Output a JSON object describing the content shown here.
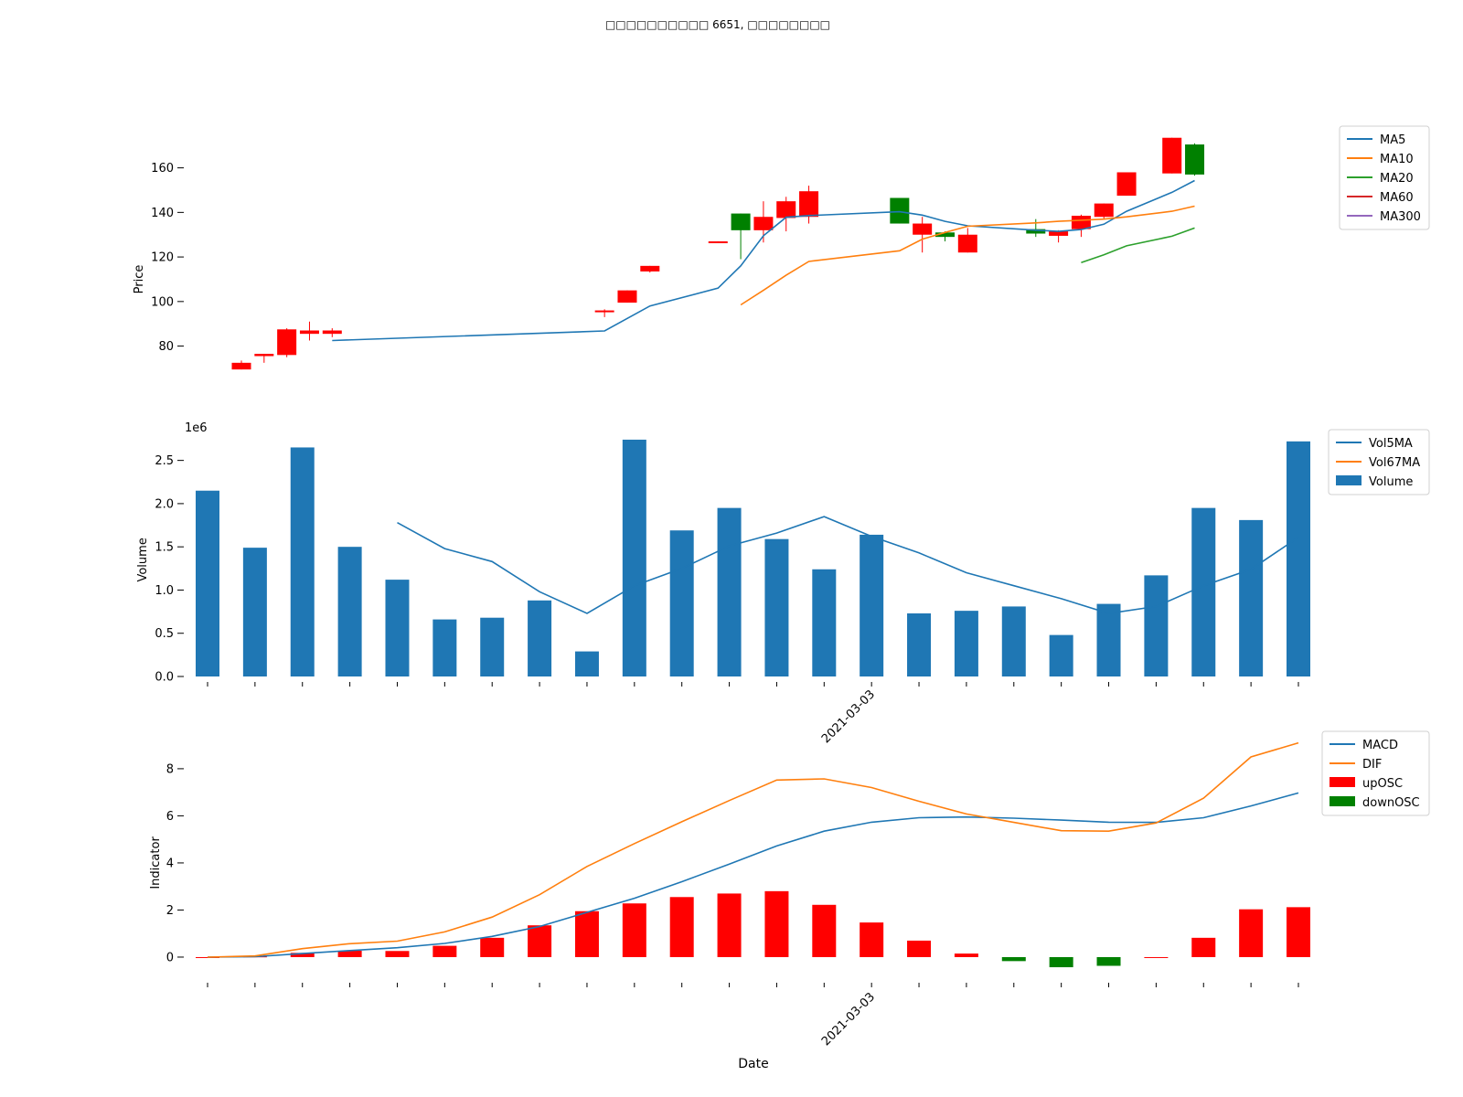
{
  "title": "□□□□□□□□□□ 6651, □□□□□□□□",
  "colors": {
    "blue": "#1f77b4",
    "orange": "#ff7f0e",
    "green": "#2ca02c",
    "red": "#d62728",
    "purple": "#9467bd",
    "candle_up": "#ff0000",
    "candle_down": "#008000",
    "osc_up": "#ff0000",
    "osc_down": "#008000"
  },
  "chart_data": [
    {
      "type": "candlestick",
      "id": "price",
      "ylabel": "Price",
      "ylim": [
        63,
        182
      ],
      "yticks": [
        80,
        100,
        120,
        140,
        160
      ],
      "slots": 46,
      "candles": [
        {
          "open": 72.5,
          "close": 69.5,
          "high": 73.5,
          "low": 69.5,
          "dir": "up"
        },
        {
          "open": 76.5,
          "close": 75.5,
          "high": 76.5,
          "low": 72.5,
          "dir": "up"
        },
        {
          "open": 87.5,
          "close": 76,
          "high": 88,
          "low": 75,
          "dir": "up"
        },
        {
          "open": 87,
          "close": 85.5,
          "high": 91,
          "low": 82.5,
          "dir": "up"
        },
        {
          "open": 87,
          "close": 85.5,
          "high": 88,
          "low": 84,
          "dir": "up"
        },
        {
          "open": 96,
          "close": 95.5,
          "high": 96.5,
          "low": 93,
          "dir": "up"
        },
        {
          "open": 105,
          "close": 99.5,
          "high": 105,
          "low": 99.5,
          "dir": "up"
        },
        {
          "open": 116,
          "close": 113.5,
          "high": 116,
          "low": 113,
          "dir": "up"
        },
        {
          "open": 127,
          "close": 126.5,
          "high": 127,
          "low": 126.5,
          "dir": "up"
        },
        {
          "open": 132,
          "close": 139.5,
          "high": 139.5,
          "low": 119,
          "dir": "down"
        },
        {
          "open": 138,
          "close": 132,
          "high": 145,
          "low": 126.5,
          "dir": "up"
        },
        {
          "open": 145,
          "close": 137.5,
          "high": 147,
          "low": 131.5,
          "dir": "up"
        },
        {
          "open": 149.5,
          "close": 138,
          "high": 152,
          "low": 135,
          "dir": "up"
        },
        {
          "open": 135,
          "close": 146.5,
          "high": 146.5,
          "low": 135,
          "dir": "down"
        },
        {
          "open": 135,
          "close": 130,
          "high": 138,
          "low": 122,
          "dir": "up"
        },
        {
          "open": 129,
          "close": 131,
          "high": 131.5,
          "low": 127,
          "dir": "down"
        },
        {
          "open": 130,
          "close": 122,
          "high": 133,
          "low": 122,
          "dir": "up"
        },
        {
          "open": 130.5,
          "close": 132.5,
          "high": 137,
          "low": 129,
          "dir": "down"
        },
        {
          "open": 131.5,
          "close": 129.5,
          "high": 132,
          "low": 126.5,
          "dir": "up"
        },
        {
          "open": 138.5,
          "close": 132.5,
          "high": 139,
          "low": 129,
          "dir": "up"
        },
        {
          "open": 144,
          "close": 138,
          "high": 144,
          "low": 137,
          "dir": "up"
        },
        {
          "open": 158,
          "close": 147.5,
          "high": 158,
          "low": 147.5,
          "dir": "up"
        },
        {
          "open": 173.5,
          "close": 157.5,
          "high": 173.5,
          "low": 157.5,
          "dir": "up"
        },
        {
          "open": 157,
          "close": 170.5,
          "high": 171,
          "low": 156.5,
          "dir": "down"
        }
      ],
      "candle_slots": [
        0,
        1,
        2,
        3,
        4,
        16,
        17,
        18,
        21,
        22,
        23,
        24,
        25,
        29,
        30,
        31,
        32,
        35,
        36,
        37,
        38,
        39,
        41,
        42
      ],
      "series": [
        {
          "name": "MA5",
          "color_key": "blue",
          "x": [
            4,
            16,
            18,
            21,
            22,
            23,
            24,
            25,
            29,
            30,
            31,
            32,
            35,
            36,
            37,
            38,
            39,
            41,
            42
          ],
          "values": [
            82.5,
            86.8,
            98,
            106,
            116,
            129.5,
            137.8,
            138.6,
            140.3,
            138.8,
            136,
            134,
            132,
            131.5,
            132.3,
            134.7,
            140.5,
            149,
            154.3
          ]
        },
        {
          "name": "MA10",
          "color_key": "orange",
          "x": [
            22,
            23,
            24,
            25,
            29,
            30,
            31,
            32,
            35,
            36,
            37,
            38,
            39,
            41,
            42
          ],
          "values": [
            98.5,
            105,
            111.8,
            118,
            122.8,
            128,
            131,
            133.8,
            135.3,
            136,
            136.5,
            137,
            138,
            140.5,
            142.8
          ]
        },
        {
          "name": "MA20",
          "color_key": "green",
          "x": [
            37,
            38,
            39,
            41,
            42
          ],
          "values": [
            117.5,
            121,
            125,
            129.3,
            133
          ]
        },
        {
          "name": "MA60",
          "color_key": "red",
          "x": [],
          "values": []
        },
        {
          "name": "MA300",
          "color_key": "purple",
          "x": [],
          "values": []
        }
      ],
      "legend": [
        "MA5",
        "MA10",
        "MA20",
        "MA60",
        "MA300"
      ]
    },
    {
      "type": "bar",
      "id": "volume",
      "ylabel": "Volume",
      "scale_label": "1e6",
      "ylim": [
        0,
        2.75
      ],
      "yticks": [
        0.0,
        0.5,
        1.0,
        1.5,
        2.0,
        2.5
      ],
      "ytick_labels": [
        "0.0",
        "0.5",
        "1.0",
        "1.5",
        "2.0",
        "2.5"
      ],
      "values": [
        2.15,
        1.49,
        2.65,
        1.5,
        1.12,
        0.66,
        0.68,
        0.88,
        0.29,
        2.74,
        1.69,
        1.95,
        1.59,
        1.24,
        1.64,
        0.73,
        0.76,
        0.81,
        0.48,
        0.84,
        1.17,
        1.95,
        1.81,
        2.72
      ],
      "series": [
        {
          "name": "Vol5MA",
          "color_key": "blue",
          "start": 4,
          "values": [
            1.78,
            1.48,
            1.33,
            0.98,
            0.73,
            1.05,
            1.25,
            1.51,
            1.66,
            1.85,
            1.62,
            1.43,
            1.2,
            1.05,
            0.9,
            0.73,
            0.81,
            1.05,
            1.24,
            1.61
          ]
        },
        {
          "name": "Vol67MA",
          "color_key": "orange",
          "start": 24,
          "values": []
        }
      ],
      "legend": [
        "Vol5MA",
        "Vol67MA",
        "Volume"
      ],
      "xtick_label": "2021-03-03",
      "xtick_label_index": 14
    },
    {
      "type": "bar+line",
      "id": "macd",
      "ylabel": "Indicator",
      "xlabel": "Date",
      "ylim": [
        -0.7,
        9.2
      ],
      "yticks": [
        0,
        2,
        4,
        6,
        8
      ],
      "macd": [
        0.0,
        0.02,
        0.15,
        0.28,
        0.4,
        0.58,
        0.88,
        1.3,
        1.9,
        2.5,
        3.2,
        3.95,
        4.72,
        5.35,
        5.73,
        5.92,
        5.95,
        5.9,
        5.82,
        5.73,
        5.72,
        5.92,
        6.42,
        6.97
      ],
      "dif": [
        0.0,
        0.05,
        0.36,
        0.57,
        0.68,
        1.07,
        1.7,
        2.65,
        3.85,
        4.82,
        5.75,
        6.65,
        7.52,
        7.57,
        7.2,
        6.62,
        6.08,
        5.72,
        5.37,
        5.35,
        5.7,
        6.75,
        8.5,
        9.1
      ],
      "osc": [
        0.0,
        0.03,
        0.18,
        0.27,
        0.26,
        0.48,
        0.82,
        1.35,
        1.95,
        2.28,
        2.55,
        2.7,
        2.8,
        2.22,
        1.47,
        0.7,
        0.15,
        -0.17,
        -0.43,
        -0.37,
        0.0,
        0.82,
        2.03,
        2.12
      ],
      "legend": [
        "MACD",
        "DIF",
        "upOSC",
        "downOSC"
      ],
      "xtick_label": "2021-03-03",
      "xtick_label_index": 14
    }
  ]
}
